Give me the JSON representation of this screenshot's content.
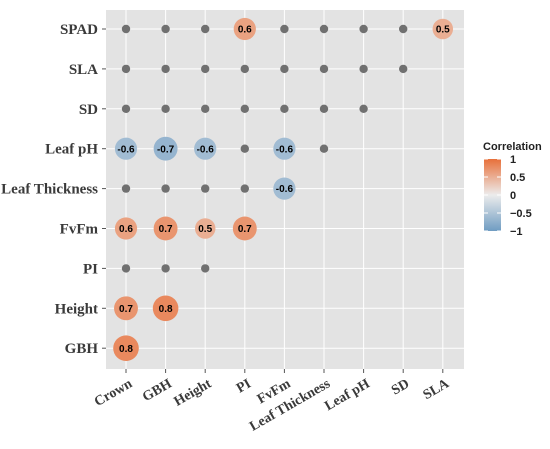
{
  "chart_data": {
    "type": "scatter",
    "subtype": "correlation-matrix-circles",
    "x_categories": [
      "Crown",
      "GBH",
      "Height",
      "PI",
      "FvFm",
      "Leaf Thickness",
      "Leaf pH",
      "SD",
      "SLA"
    ],
    "y_categories": [
      "SPAD",
      "SLA",
      "SD",
      "Leaf pH",
      "Leaf Thickness",
      "FvFm",
      "PI",
      "Height",
      "GBH"
    ],
    "cells": [
      {
        "y": "SPAD",
        "x": "Crown",
        "r": null
      },
      {
        "y": "SPAD",
        "x": "GBH",
        "r": null
      },
      {
        "y": "SPAD",
        "x": "Height",
        "r": null
      },
      {
        "y": "SPAD",
        "x": "PI",
        "r": 0.6
      },
      {
        "y": "SPAD",
        "x": "FvFm",
        "r": null
      },
      {
        "y": "SPAD",
        "x": "Leaf Thickness",
        "r": null
      },
      {
        "y": "SPAD",
        "x": "Leaf pH",
        "r": null
      },
      {
        "y": "SPAD",
        "x": "SD",
        "r": null
      },
      {
        "y": "SPAD",
        "x": "SLA",
        "r": 0.5
      },
      {
        "y": "SLA",
        "x": "Crown",
        "r": null
      },
      {
        "y": "SLA",
        "x": "GBH",
        "r": null
      },
      {
        "y": "SLA",
        "x": "Height",
        "r": null
      },
      {
        "y": "SLA",
        "x": "PI",
        "r": null
      },
      {
        "y": "SLA",
        "x": "FvFm",
        "r": null
      },
      {
        "y": "SLA",
        "x": "Leaf Thickness",
        "r": null
      },
      {
        "y": "SLA",
        "x": "Leaf pH",
        "r": null
      },
      {
        "y": "SLA",
        "x": "SD",
        "r": null
      },
      {
        "y": "SD",
        "x": "Crown",
        "r": null
      },
      {
        "y": "SD",
        "x": "GBH",
        "r": null
      },
      {
        "y": "SD",
        "x": "Height",
        "r": null
      },
      {
        "y": "SD",
        "x": "PI",
        "r": null
      },
      {
        "y": "SD",
        "x": "FvFm",
        "r": null
      },
      {
        "y": "SD",
        "x": "Leaf Thickness",
        "r": null
      },
      {
        "y": "SD",
        "x": "Leaf pH",
        "r": null
      },
      {
        "y": "Leaf pH",
        "x": "Crown",
        "r": -0.6
      },
      {
        "y": "Leaf pH",
        "x": "GBH",
        "r": -0.7
      },
      {
        "y": "Leaf pH",
        "x": "Height",
        "r": -0.6
      },
      {
        "y": "Leaf pH",
        "x": "PI",
        "r": null
      },
      {
        "y": "Leaf pH",
        "x": "FvFm",
        "r": -0.6
      },
      {
        "y": "Leaf pH",
        "x": "Leaf Thickness",
        "r": null
      },
      {
        "y": "Leaf Thickness",
        "x": "Crown",
        "r": null
      },
      {
        "y": "Leaf Thickness",
        "x": "GBH",
        "r": null
      },
      {
        "y": "Leaf Thickness",
        "x": "Height",
        "r": null
      },
      {
        "y": "Leaf Thickness",
        "x": "PI",
        "r": null
      },
      {
        "y": "Leaf Thickness",
        "x": "FvFm",
        "r": -0.6
      },
      {
        "y": "FvFm",
        "x": "Crown",
        "r": 0.6
      },
      {
        "y": "FvFm",
        "x": "GBH",
        "r": 0.7
      },
      {
        "y": "FvFm",
        "x": "Height",
        "r": 0.5
      },
      {
        "y": "FvFm",
        "x": "PI",
        "r": 0.7
      },
      {
        "y": "PI",
        "x": "Crown",
        "r": null
      },
      {
        "y": "PI",
        "x": "GBH",
        "r": null
      },
      {
        "y": "PI",
        "x": "Height",
        "r": null
      },
      {
        "y": "Height",
        "x": "Crown",
        "r": 0.7
      },
      {
        "y": "Height",
        "x": "GBH",
        "r": 0.8
      },
      {
        "y": "GBH",
        "x": "Crown",
        "r": 0.8
      }
    ],
    "legend": {
      "title": "Correlation",
      "ticks": [
        "1",
        "0.5",
        "0",
        "−0.5",
        "−1"
      ],
      "tick_values": [
        1,
        0.5,
        0,
        -0.5,
        -1
      ],
      "placement": "right"
    },
    "colors": {
      "positive": "#e8703a",
      "mid": "#ececec",
      "negative": "#6f9cc2",
      "nonsignificant": "#707070",
      "panel": "#e3e3e3",
      "grid": "#ffffff"
    },
    "grid": true
  }
}
